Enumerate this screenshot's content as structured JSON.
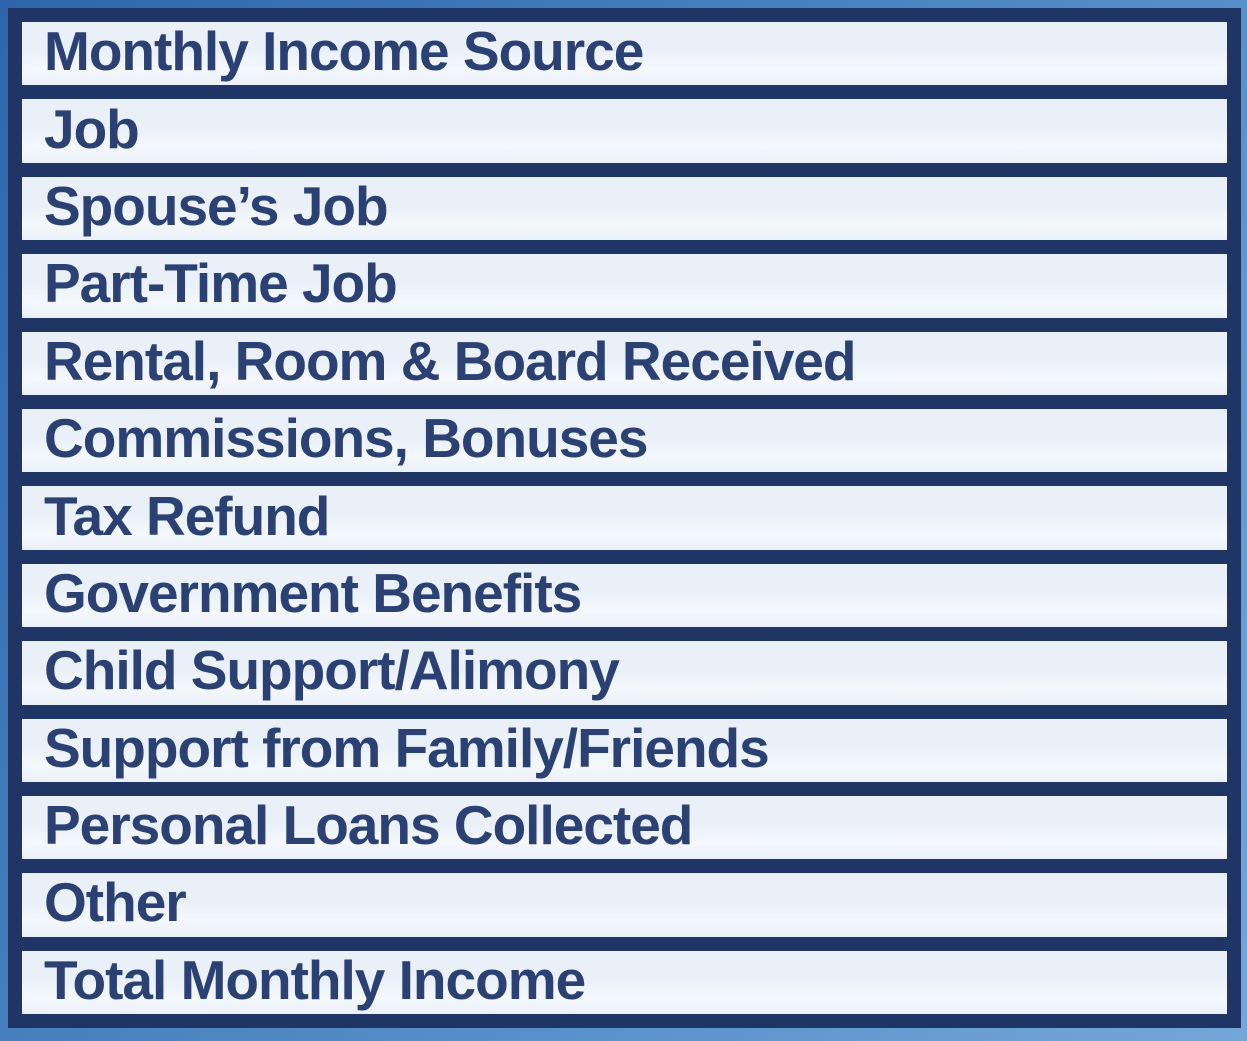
{
  "page": {
    "title": "Monthly Income Source worksheet table"
  },
  "table": {
    "header": "Monthly Income Source",
    "rows": [
      "Job",
      "Spouse’s Job",
      "Part-Time Job",
      "Rental, Room & Board Received",
      "Commissions, Bonuses",
      "Tax Refund",
      "Government Benefits",
      "Child Support/Alimony",
      "Support from Family/Friends",
      "Personal Loans Collected",
      "Other",
      "Total Monthly Income"
    ]
  },
  "colors": {
    "outer_frame_top": "#2e66ac",
    "outer_frame_mid": "#4c86c3",
    "outer_frame_bottom": "#74a7d8",
    "grid_navy": "#1e3566",
    "row_background": "#eaf0f8",
    "row_background_highlight": "#f4f8fc",
    "text_navy": "#2b4173"
  }
}
